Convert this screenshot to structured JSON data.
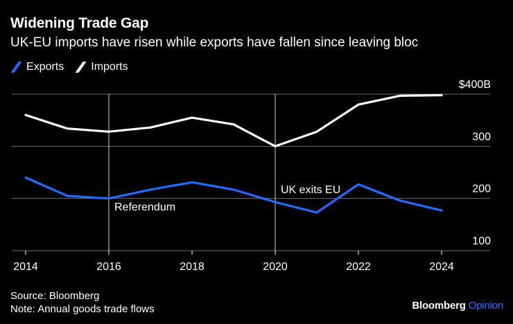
{
  "header": {
    "title": "Widening Trade Gap",
    "subtitle": "UK-EU imports have risen while exports have fallen since leaving bloc"
  },
  "footer": {
    "source": "Source: Bloomberg",
    "note": "Note: Annual goods trade flows"
  },
  "brand": {
    "part1": "Bloomberg",
    "part2": "Opinion"
  },
  "colors": {
    "background": "#000000",
    "exports": "#1f6bff",
    "imports": "#ffffff",
    "grid": "#6e6e6e",
    "brand_accent": "#2f6bff"
  },
  "chart_data": {
    "type": "line",
    "x": [
      2014,
      2015,
      2016,
      2017,
      2018,
      2019,
      2020,
      2021,
      2022,
      2023,
      2024
    ],
    "series": [
      {
        "name": "Exports",
        "color": "#1f6bff",
        "values": [
          240,
          205,
          200,
          217,
          231,
          217,
          193,
          173,
          227,
          196,
          177
        ]
      },
      {
        "name": "Imports",
        "color": "#ffffff",
        "values": [
          360,
          334,
          328,
          336,
          355,
          342,
          300,
          328,
          380,
          397,
          398
        ]
      }
    ],
    "xticks": [
      2014,
      2016,
      2018,
      2020,
      2022,
      2024
    ],
    "xtick_labels": [
      "2014",
      "2016",
      "2018",
      "2020",
      "2022",
      "2024"
    ],
    "yticks": [
      100,
      200,
      300,
      400
    ],
    "ytick_labels": [
      "100",
      "200",
      "300",
      "$400B"
    ],
    "ylim": [
      100,
      400
    ],
    "xlim": [
      2014,
      2024
    ],
    "y_axis_side": "right",
    "grid": true,
    "legend_position": "top-left",
    "annotations": [
      {
        "label": "Referendum",
        "x": 2016,
        "y": 185
      },
      {
        "label": "UK exits EU",
        "x": 2020,
        "y": 218
      }
    ],
    "title": "Widening Trade Gap",
    "subtitle": "UK-EU imports have risen while exports have fallen since leaving bloc",
    "xlabel": "",
    "ylabel": ""
  }
}
